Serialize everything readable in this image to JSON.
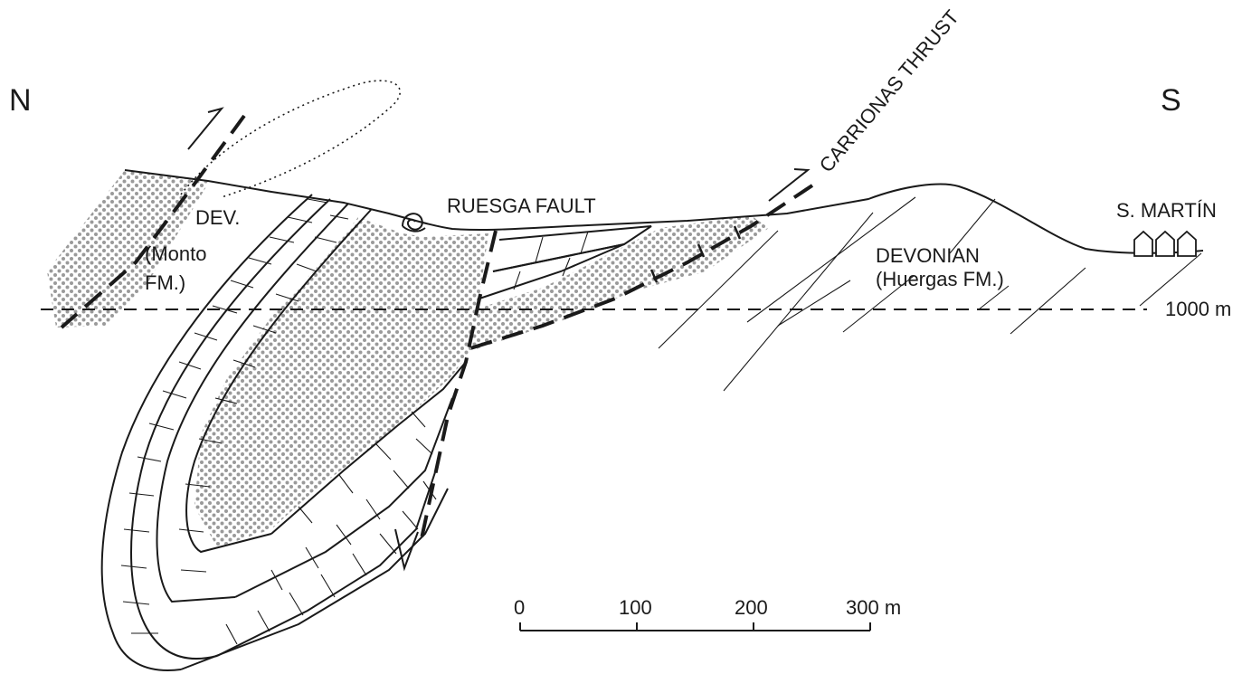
{
  "labels": {
    "north": "N",
    "south": "S",
    "thrust": "CARRIONAS THRUST",
    "fault": "RUESGA  FAULT",
    "village": "S. MARTÍN",
    "dev_short": "DEV.",
    "monto_1": "(Monto",
    "monto_2": "FM.)",
    "devonian_1": "DEVONIAN",
    "devonian_2": "(Huergas  FM.)",
    "datum": "1000 m"
  },
  "scale_bar": {
    "ticks": [
      "0",
      "100",
      "200",
      "300 m"
    ]
  },
  "colors": {
    "ink": "#1a1a1a",
    "stipple": "#9a9a9a",
    "background": "#ffffff"
  }
}
